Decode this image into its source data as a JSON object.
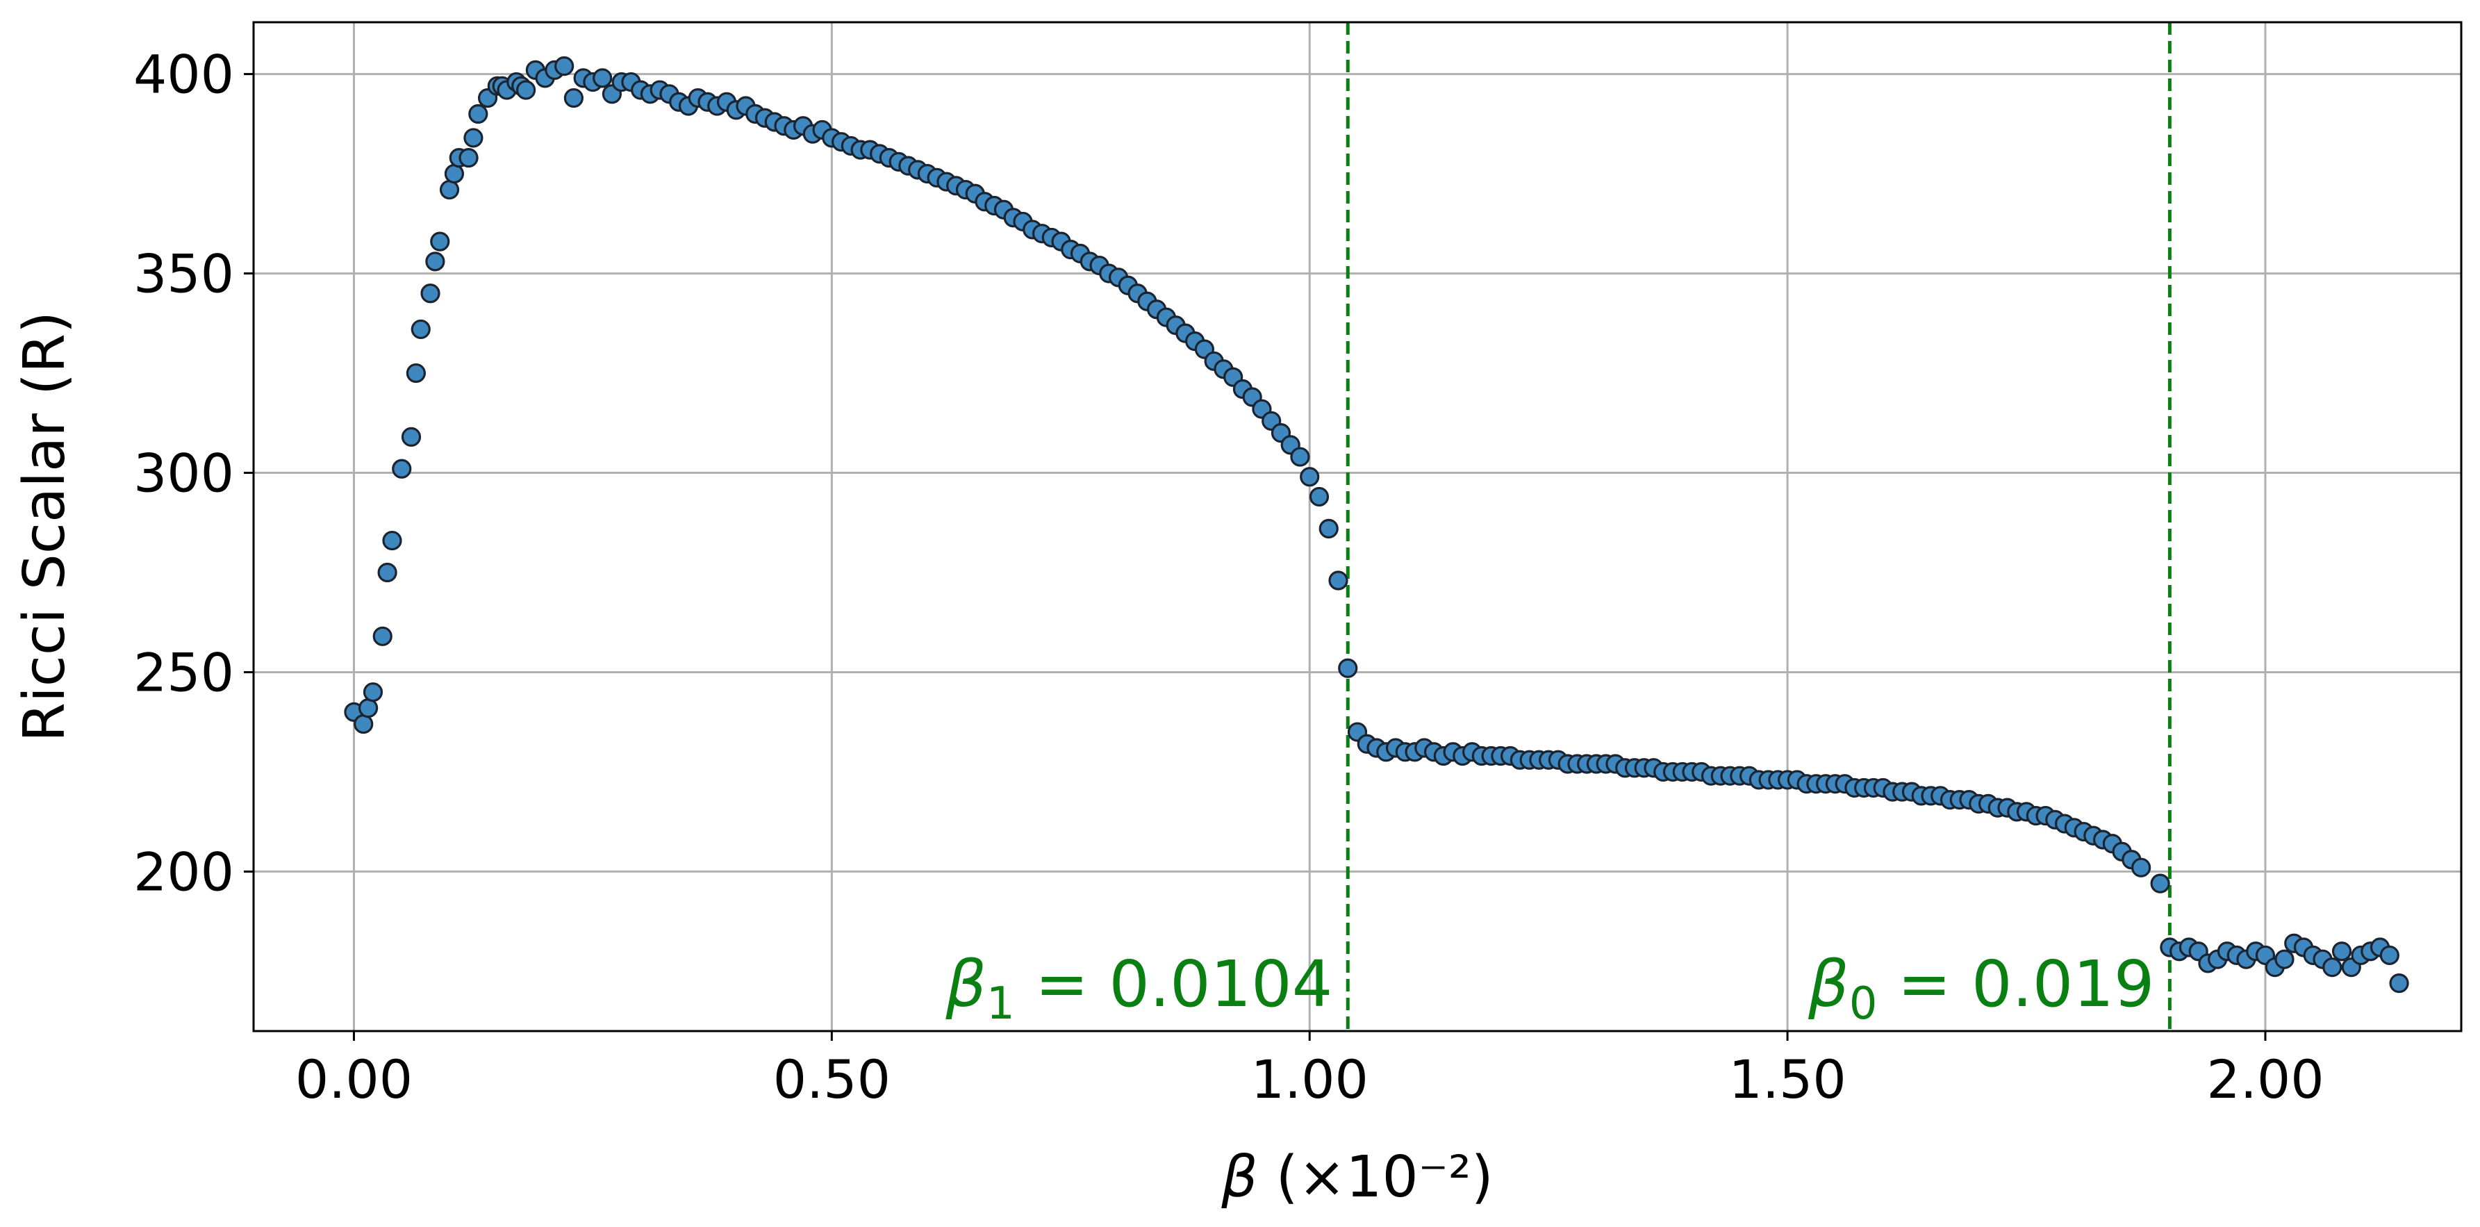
{
  "chart_data": {
    "type": "scatter",
    "xlabel_symbol": "β",
    "xlabel_unit": " (×10⁻²)",
    "ylabel": "Ricci Scalar (R)",
    "xlim": [
      -0.105,
      2.205
    ],
    "ylim": [
      160,
      413
    ],
    "grid": true,
    "x_ticks": [
      0.0,
      0.5,
      1.0,
      1.5,
      2.0
    ],
    "x_tick_labels": [
      "0.00",
      "0.50",
      "1.00",
      "1.50",
      "2.00"
    ],
    "y_ticks": [
      200,
      250,
      300,
      350,
      400
    ],
    "y_tick_labels": [
      "200",
      "250",
      "300",
      "350",
      "400"
    ],
    "colors": {
      "marker_fill": "#3f87bf",
      "marker_edge": "#1c2430",
      "annotation": "#0a8012",
      "grid": "#b0b0b0"
    },
    "vlines": [
      {
        "x": 1.04,
        "symbol": "β",
        "subscript": "1",
        "text": " = 0.0104"
      },
      {
        "x": 1.9,
        "symbol": "β",
        "subscript": "0",
        "text": " = 0.019"
      }
    ],
    "series": [
      {
        "points": [
          [
            0.0,
            240
          ],
          [
            0.01,
            237
          ],
          [
            0.015,
            241
          ],
          [
            0.02,
            245
          ],
          [
            0.03,
            259
          ],
          [
            0.035,
            275
          ],
          [
            0.04,
            283
          ],
          [
            0.05,
            301
          ],
          [
            0.06,
            309
          ],
          [
            0.065,
            325
          ],
          [
            0.07,
            336
          ],
          [
            0.08,
            345
          ],
          [
            0.085,
            353
          ],
          [
            0.09,
            358
          ],
          [
            0.1,
            371
          ],
          [
            0.105,
            375
          ],
          [
            0.11,
            379
          ],
          [
            0.12,
            379
          ],
          [
            0.125,
            384
          ],
          [
            0.13,
            390
          ],
          [
            0.14,
            394
          ],
          [
            0.15,
            397
          ],
          [
            0.155,
            397
          ],
          [
            0.16,
            396
          ],
          [
            0.17,
            398
          ],
          [
            0.175,
            397
          ],
          [
            0.18,
            396
          ],
          [
            0.19,
            401
          ],
          [
            0.2,
            399
          ],
          [
            0.21,
            401
          ],
          [
            0.22,
            402
          ],
          [
            0.23,
            394
          ],
          [
            0.24,
            399
          ],
          [
            0.25,
            398
          ],
          [
            0.26,
            399
          ],
          [
            0.27,
            395
          ],
          [
            0.28,
            398
          ],
          [
            0.29,
            398
          ],
          [
            0.3,
            396
          ],
          [
            0.31,
            395
          ],
          [
            0.32,
            396
          ],
          [
            0.33,
            395
          ],
          [
            0.34,
            393
          ],
          [
            0.35,
            392
          ],
          [
            0.36,
            394
          ],
          [
            0.37,
            393
          ],
          [
            0.38,
            392
          ],
          [
            0.39,
            393
          ],
          [
            0.4,
            391
          ],
          [
            0.41,
            392
          ],
          [
            0.42,
            390
          ],
          [
            0.43,
            389
          ],
          [
            0.44,
            388
          ],
          [
            0.45,
            387
          ],
          [
            0.46,
            386
          ],
          [
            0.47,
            387
          ],
          [
            0.48,
            385
          ],
          [
            0.49,
            386
          ],
          [
            0.5,
            384
          ],
          [
            0.51,
            383
          ],
          [
            0.52,
            382
          ],
          [
            0.53,
            381
          ],
          [
            0.54,
            381
          ],
          [
            0.55,
            380
          ],
          [
            0.56,
            379
          ],
          [
            0.57,
            378
          ],
          [
            0.58,
            377
          ],
          [
            0.59,
            376
          ],
          [
            0.6,
            375
          ],
          [
            0.61,
            374
          ],
          [
            0.62,
            373
          ],
          [
            0.63,
            372
          ],
          [
            0.64,
            371
          ],
          [
            0.65,
            370
          ],
          [
            0.66,
            368
          ],
          [
            0.67,
            367
          ],
          [
            0.68,
            366
          ],
          [
            0.69,
            364
          ],
          [
            0.7,
            363
          ],
          [
            0.71,
            361
          ],
          [
            0.72,
            360
          ],
          [
            0.73,
            359
          ],
          [
            0.74,
            358
          ],
          [
            0.75,
            356
          ],
          [
            0.76,
            355
          ],
          [
            0.77,
            353
          ],
          [
            0.78,
            352
          ],
          [
            0.79,
            350
          ],
          [
            0.8,
            349
          ],
          [
            0.81,
            347
          ],
          [
            0.82,
            345
          ],
          [
            0.83,
            343
          ],
          [
            0.84,
            341
          ],
          [
            0.85,
            339
          ],
          [
            0.86,
            337
          ],
          [
            0.87,
            335
          ],
          [
            0.88,
            333
          ],
          [
            0.89,
            331
          ],
          [
            0.9,
            328
          ],
          [
            0.91,
            326
          ],
          [
            0.92,
            324
          ],
          [
            0.93,
            321
          ],
          [
            0.94,
            319
          ],
          [
            0.95,
            316
          ],
          [
            0.96,
            313
          ],
          [
            0.97,
            310
          ],
          [
            0.98,
            307
          ],
          [
            0.99,
            304
          ],
          [
            1.0,
            299
          ],
          [
            1.01,
            294
          ],
          [
            1.02,
            286
          ],
          [
            1.03,
            273
          ],
          [
            1.04,
            251
          ],
          [
            1.05,
            235
          ],
          [
            1.06,
            232
          ],
          [
            1.07,
            231
          ],
          [
            1.08,
            230
          ],
          [
            1.09,
            231
          ],
          [
            1.1,
            230
          ],
          [
            1.11,
            230
          ],
          [
            1.12,
            231
          ],
          [
            1.13,
            230
          ],
          [
            1.14,
            229
          ],
          [
            1.15,
            230
          ],
          [
            1.16,
            229
          ],
          [
            1.17,
            230
          ],
          [
            1.18,
            229
          ],
          [
            1.19,
            229
          ],
          [
            1.2,
            229
          ],
          [
            1.21,
            229
          ],
          [
            1.22,
            228
          ],
          [
            1.23,
            228
          ],
          [
            1.24,
            228
          ],
          [
            1.25,
            228
          ],
          [
            1.26,
            228
          ],
          [
            1.27,
            227
          ],
          [
            1.28,
            227
          ],
          [
            1.29,
            227
          ],
          [
            1.3,
            227
          ],
          [
            1.31,
            227
          ],
          [
            1.32,
            227
          ],
          [
            1.33,
            226
          ],
          [
            1.34,
            226
          ],
          [
            1.35,
            226
          ],
          [
            1.36,
            226
          ],
          [
            1.37,
            225
          ],
          [
            1.38,
            225
          ],
          [
            1.39,
            225
          ],
          [
            1.4,
            225
          ],
          [
            1.41,
            225
          ],
          [
            1.42,
            224
          ],
          [
            1.43,
            224
          ],
          [
            1.44,
            224
          ],
          [
            1.45,
            224
          ],
          [
            1.46,
            224
          ],
          [
            1.47,
            223
          ],
          [
            1.48,
            223
          ],
          [
            1.49,
            223
          ],
          [
            1.5,
            223
          ],
          [
            1.51,
            223
          ],
          [
            1.52,
            222
          ],
          [
            1.53,
            222
          ],
          [
            1.54,
            222
          ],
          [
            1.55,
            222
          ],
          [
            1.56,
            222
          ],
          [
            1.57,
            221
          ],
          [
            1.58,
            221
          ],
          [
            1.59,
            221
          ],
          [
            1.6,
            221
          ],
          [
            1.61,
            220
          ],
          [
            1.62,
            220
          ],
          [
            1.63,
            220
          ],
          [
            1.64,
            219
          ],
          [
            1.65,
            219
          ],
          [
            1.66,
            219
          ],
          [
            1.67,
            218
          ],
          [
            1.68,
            218
          ],
          [
            1.69,
            218
          ],
          [
            1.7,
            217
          ],
          [
            1.71,
            217
          ],
          [
            1.72,
            216
          ],
          [
            1.73,
            216
          ],
          [
            1.74,
            215
          ],
          [
            1.75,
            215
          ],
          [
            1.76,
            214
          ],
          [
            1.77,
            214
          ],
          [
            1.78,
            213
          ],
          [
            1.79,
            212
          ],
          [
            1.8,
            211
          ],
          [
            1.81,
            210
          ],
          [
            1.82,
            209
          ],
          [
            1.83,
            208
          ],
          [
            1.84,
            207
          ],
          [
            1.85,
            205
          ],
          [
            1.86,
            203
          ],
          [
            1.87,
            201
          ],
          [
            1.89,
            197
          ],
          [
            1.9,
            181
          ],
          [
            1.91,
            180
          ],
          [
            1.92,
            181
          ],
          [
            1.93,
            180
          ],
          [
            1.94,
            177
          ],
          [
            1.95,
            178
          ],
          [
            1.96,
            180
          ],
          [
            1.97,
            179
          ],
          [
            1.98,
            178
          ],
          [
            1.99,
            180
          ],
          [
            2.0,
            179
          ],
          [
            2.01,
            176
          ],
          [
            2.02,
            178
          ],
          [
            2.03,
            182
          ],
          [
            2.04,
            181
          ],
          [
            2.05,
            179
          ],
          [
            2.06,
            178
          ],
          [
            2.07,
            176
          ],
          [
            2.08,
            180
          ],
          [
            2.09,
            176
          ],
          [
            2.1,
            179
          ],
          [
            2.11,
            180
          ],
          [
            2.12,
            181
          ],
          [
            2.13,
            179
          ],
          [
            2.14,
            172
          ]
        ]
      }
    ]
  }
}
